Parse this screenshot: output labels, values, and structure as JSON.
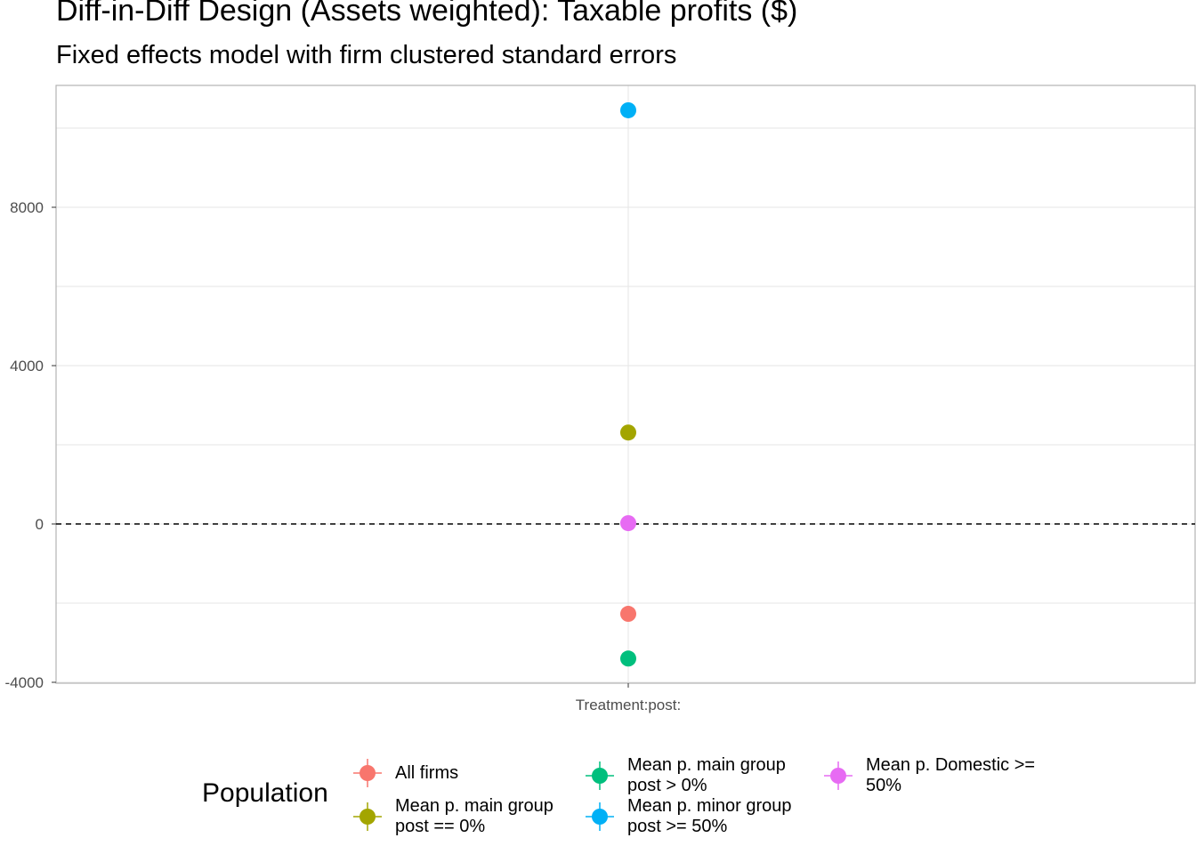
{
  "chart_data": {
    "type": "scatter",
    "title": "Diff-in-Diff Design (Assets weighted): Taxable profits  ($)",
    "subtitle": "Fixed effects model with firm clustered standard errors",
    "xlabel": "",
    "ylabel": "",
    "categories": [
      "Treatment:post:"
    ],
    "ylim": [
      -4000,
      10900
    ],
    "y_ticks": [
      "-4000",
      "0",
      "4000",
      "8000"
    ],
    "y_tick_values": [
      -4000,
      0,
      4000,
      8000
    ],
    "reference_line": {
      "y": 0,
      "style": "dashed"
    },
    "grid": true,
    "legend": {
      "title": "Population",
      "position": "bottom"
    },
    "series": [
      {
        "name": "All firms",
        "label": "All firms",
        "color": "#F8766D",
        "x": "Treatment:post:",
        "y": -2270
      },
      {
        "name": "Mean p. main group post == 0%",
        "label": "Mean p. main group\npost == 0%",
        "color": "#A3A500",
        "x": "Treatment:post:",
        "y": 2310
      },
      {
        "name": "Mean p. main group post > 0%",
        "label": "Mean p. main group\npost > 0%",
        "color": "#00BF7D",
        "x": "Treatment:post:",
        "y": -3400
      },
      {
        "name": "Mean p. minor group post >= 50%",
        "label": "Mean p. minor group\npost >= 50%",
        "color": "#00B0F6",
        "x": "Treatment:post:",
        "y": 10450
      },
      {
        "name": "Mean p. Domestic >= 50%",
        "label": "Mean p. Domestic >=\n50%",
        "color": "#E76BF3",
        "x": "Treatment:post:",
        "y": 20
      }
    ]
  }
}
